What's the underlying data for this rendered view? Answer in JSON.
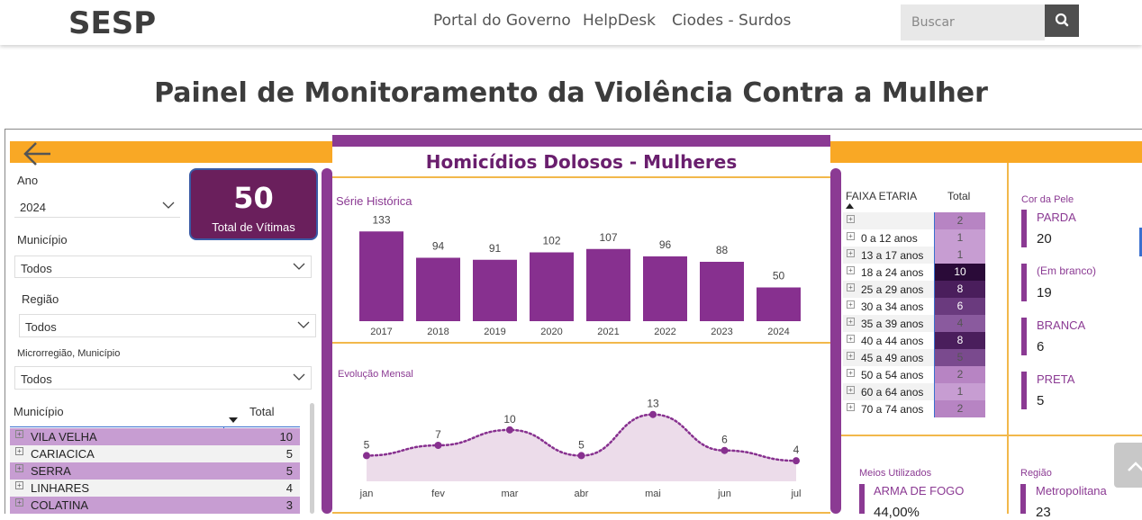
{
  "header": {
    "brand": "SESP",
    "nav": [
      "Portal do Governo",
      "HelpDesk",
      "Ciodes - Surdos"
    ],
    "search_placeholder": "Buscar"
  },
  "page_title": "Painel de Monitoramento da Violência Contra a Mulher",
  "filters": {
    "ano_label": "Ano",
    "ano_value": "2024",
    "municipio_label": "Município",
    "municipio_value": "Todos",
    "regiao_label": "Região",
    "regiao_value": "Todos",
    "micro_label": "Microrregião, Município",
    "micro_value": "Todos"
  },
  "kpi": {
    "value": "50",
    "label": "Total de Vítimas"
  },
  "municipio_table": {
    "headers": [
      "Município",
      "Total"
    ],
    "rows": [
      {
        "name": "VILA VELHA",
        "total": "10"
      },
      {
        "name": "CARIACICA",
        "total": "5"
      },
      {
        "name": "SERRA",
        "total": "5"
      },
      {
        "name": "LINHARES",
        "total": "4"
      },
      {
        "name": "COLATINA",
        "total": "3"
      }
    ]
  },
  "main_title": "Homicídios Dolosos - Mulheres",
  "serie_title": "Série Histórica",
  "evolucao_title": "Evolução Mensal",
  "chart_data": [
    {
      "type": "bar",
      "title": "Série Histórica",
      "categories": [
        "2017",
        "2018",
        "2019",
        "2020",
        "2021",
        "2022",
        "2023",
        "2024"
      ],
      "values": [
        133,
        94,
        91,
        102,
        107,
        96,
        88,
        50
      ],
      "ylim": [
        0,
        140
      ],
      "color": "#87308f"
    },
    {
      "type": "area",
      "title": "Evolução Mensal",
      "categories": [
        "jan",
        "fev",
        "mar",
        "abr",
        "mai",
        "jun",
        "jul"
      ],
      "values": [
        5,
        7,
        10,
        5,
        13,
        6,
        4
      ],
      "ylim": [
        0,
        14
      ],
      "color": "#87308f"
    }
  ],
  "faixa_table": {
    "headers": [
      "FAIXA ETARIA",
      "Total"
    ],
    "rows": [
      {
        "name": "",
        "total": "2",
        "bg": "#b784c3"
      },
      {
        "name": "0 a 12 anos",
        "total": "1",
        "bg": "#c79dd2"
      },
      {
        "name": "13 a 17 anos",
        "total": "1",
        "bg": "#c79dd2"
      },
      {
        "name": "18 a 24 anos",
        "total": "10",
        "bg": "#2a0a38"
      },
      {
        "name": "25 a 29 anos",
        "total": "8",
        "bg": "#4a1e5c"
      },
      {
        "name": "30 a 34 anos",
        "total": "6",
        "bg": "#6a3a7e"
      },
      {
        "name": "35 a 39 anos",
        "total": "4",
        "bg": "#8a5a9e"
      },
      {
        "name": "40 a 44 anos",
        "total": "8",
        "bg": "#4a1e5c"
      },
      {
        "name": "45 a 49 anos",
        "total": "5",
        "bg": "#7a4a8e"
      },
      {
        "name": "50 a 54 anos",
        "total": "2",
        "bg": "#b784c3"
      },
      {
        "name": "60 a 64 anos",
        "total": "1",
        "bg": "#c79dd2"
      },
      {
        "name": "70 a 74 anos",
        "total": "2",
        "bg": "#b784c3"
      }
    ]
  },
  "cor_pele": {
    "title": "Cor da Pele",
    "items": [
      {
        "label": "PARDA",
        "value": "20"
      },
      {
        "label": "(Em branco)",
        "value": "19"
      },
      {
        "label": "BRANCA",
        "value": "6"
      },
      {
        "label": "PRETA",
        "value": "5"
      }
    ]
  },
  "meios": {
    "title": "Meios Utilizados",
    "items": [
      {
        "label": "ARMA DE FOGO",
        "value": "44,00%"
      }
    ]
  },
  "regiao": {
    "title": "Região",
    "items": [
      {
        "label": "Metropolitana",
        "value": "23"
      }
    ]
  }
}
